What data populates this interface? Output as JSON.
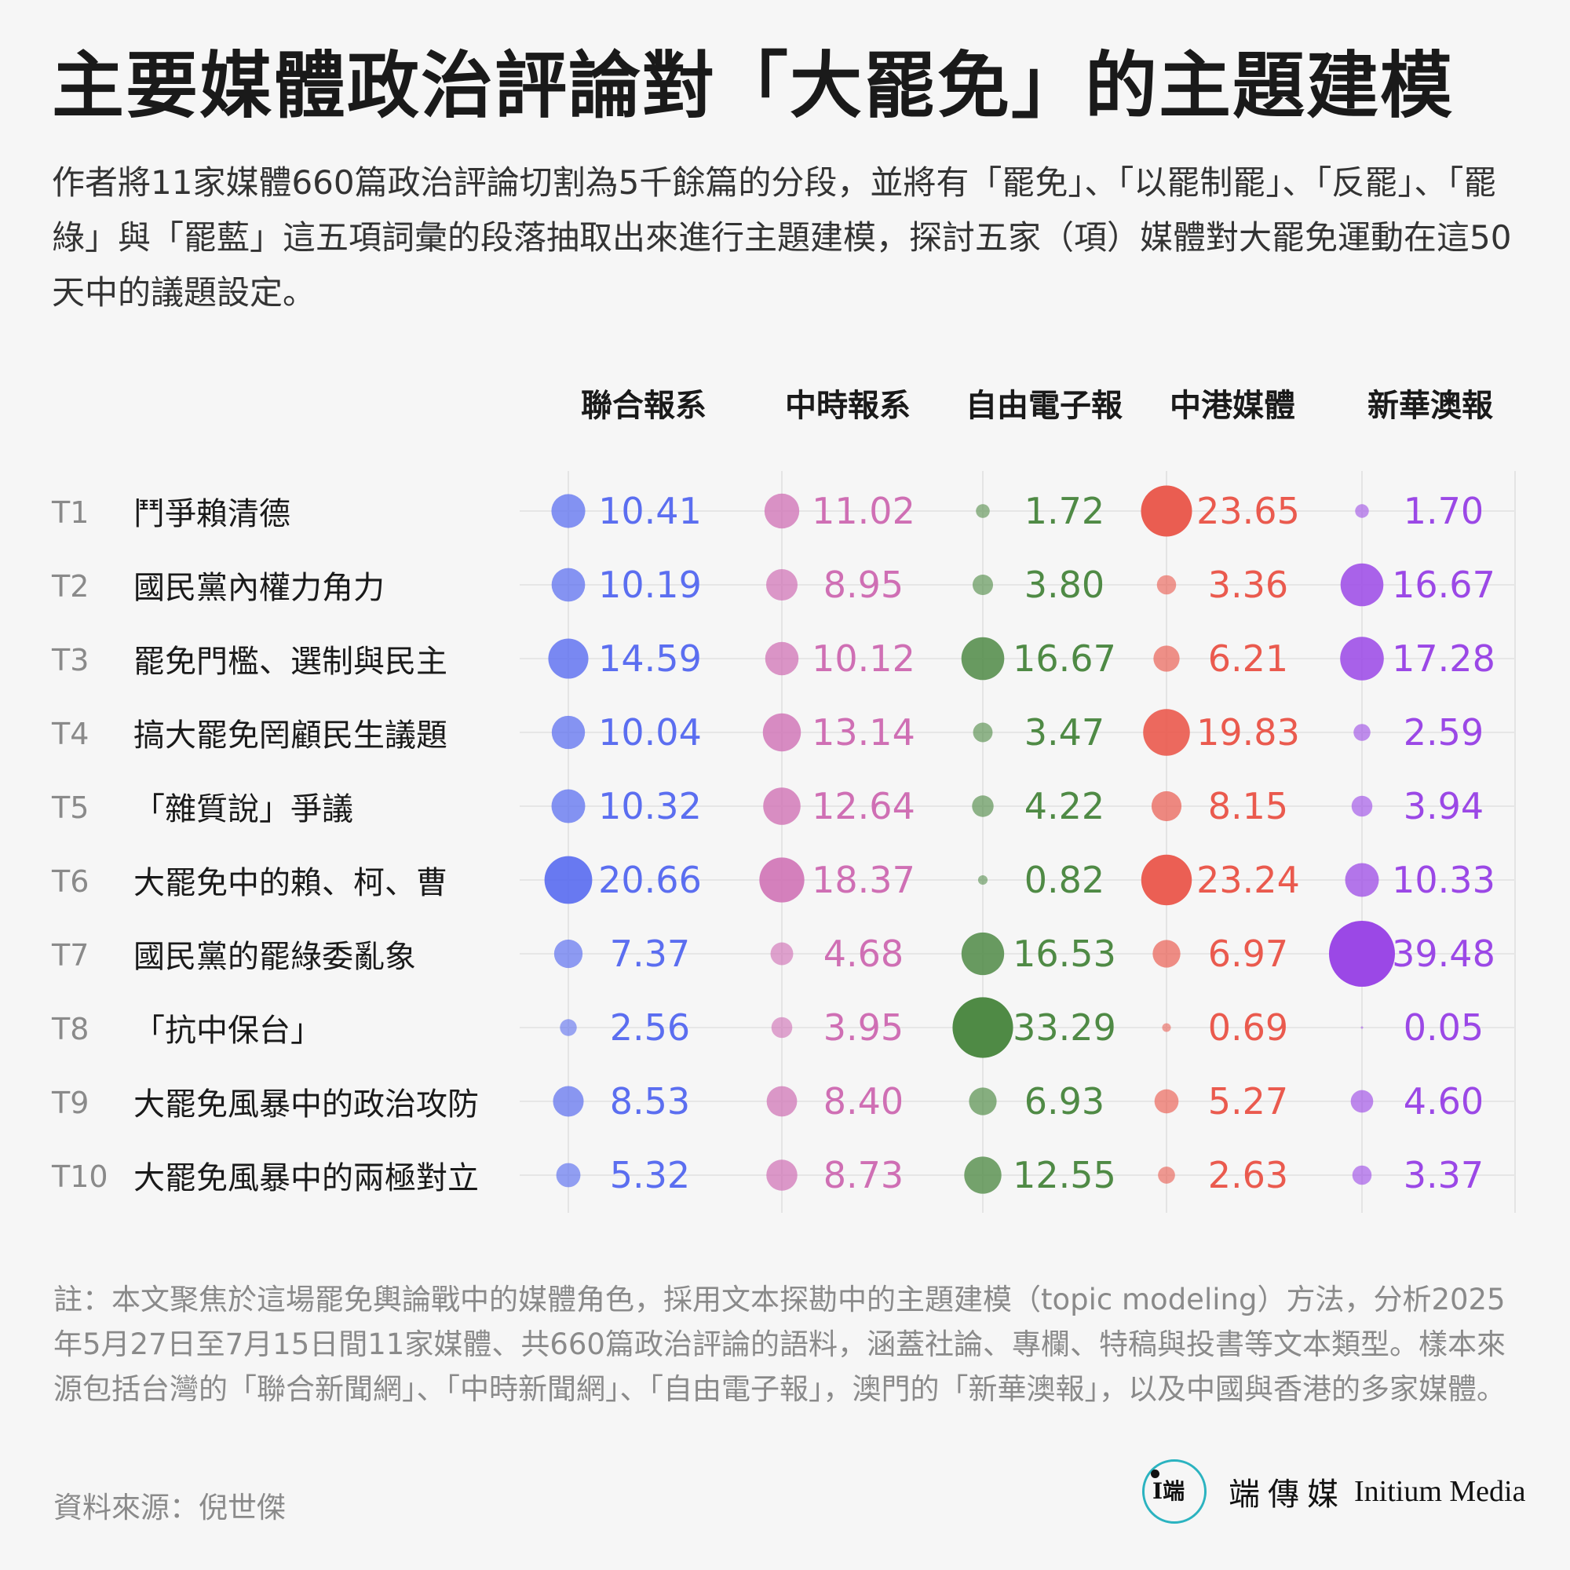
{
  "header": {
    "title": "主要媒體政治評論對「大罷免」的主題建模",
    "subtitle": "作者將11家媒體660篇政治評論切割為5千餘篇的分段，並將有「罷免」、「以罷制罷」、「反罷」、「罷綠」與「罷藍」這五項詞彙的段落抽取出來進行主題建模，探討五家（項）媒體對大罷免運動在這50天中的議題設定。"
  },
  "chart_data": {
    "type": "bubble",
    "columns": [
      "聯合報系",
      "中時報系",
      "自由電子報",
      "中港媒體",
      "新華澳報"
    ],
    "colors": [
      "#5b6ef0",
      "#cf6fb4",
      "#4f8a45",
      "#ea5a4e",
      "#9b48e6"
    ],
    "rows": [
      {
        "id": "T1",
        "label": "鬥爭賴清德",
        "values": [
          10.41,
          11.02,
          1.72,
          23.65,
          1.7
        ]
      },
      {
        "id": "T2",
        "label": "國民黨內權力角力",
        "values": [
          10.19,
          8.95,
          3.8,
          3.36,
          16.67
        ]
      },
      {
        "id": "T3",
        "label": "罷免門檻、選制與民主",
        "values": [
          14.59,
          10.12,
          16.67,
          6.21,
          17.28
        ]
      },
      {
        "id": "T4",
        "label": "搞大罷免罔顧民生議題",
        "values": [
          10.04,
          13.14,
          3.47,
          19.83,
          2.59
        ]
      },
      {
        "id": "T5",
        "label": "「雜質說」爭議",
        "values": [
          10.32,
          12.64,
          4.22,
          8.15,
          3.94
        ]
      },
      {
        "id": "T6",
        "label": "大罷免中的賴、柯、曹",
        "values": [
          20.66,
          18.37,
          0.82,
          23.24,
          10.33
        ]
      },
      {
        "id": "T7",
        "label": "國民黨的罷綠委亂象",
        "values": [
          7.37,
          4.68,
          16.53,
          6.97,
          39.48
        ]
      },
      {
        "id": "T8",
        "label": "「抗中保台」",
        "values": [
          2.56,
          3.95,
          33.29,
          0.69,
          0.05
        ]
      },
      {
        "id": "T9",
        "label": "大罷免風暴中的政治攻防",
        "values": [
          8.53,
          8.4,
          6.93,
          5.27,
          4.6
        ]
      },
      {
        "id": "T10",
        "label": "大罷免風暴中的兩極對立",
        "values": [
          5.32,
          8.73,
          12.55,
          2.63,
          3.37
        ]
      }
    ]
  },
  "footer": {
    "note": "註：本文聚焦於這場罷免輿論戰中的媒體角色，採用文本探勘中的主題建模（topic modeling）方法，分析2025年5月27日至7月15日間11家媒體、共660篇政治評論的語料，涵蓋社論、專欄、特稿與投書等文本類型。樣本來源包括台灣的「聯合新聞網」、「中時新聞網」、「自由電子報」，澳門的「新華澳報」，以及中國與香港的多家媒體。",
    "source": "資料來源：倪世傑",
    "logo_zh": "端傳媒",
    "logo_en": "Initium Media",
    "logo_mark_glyph": "I端"
  }
}
